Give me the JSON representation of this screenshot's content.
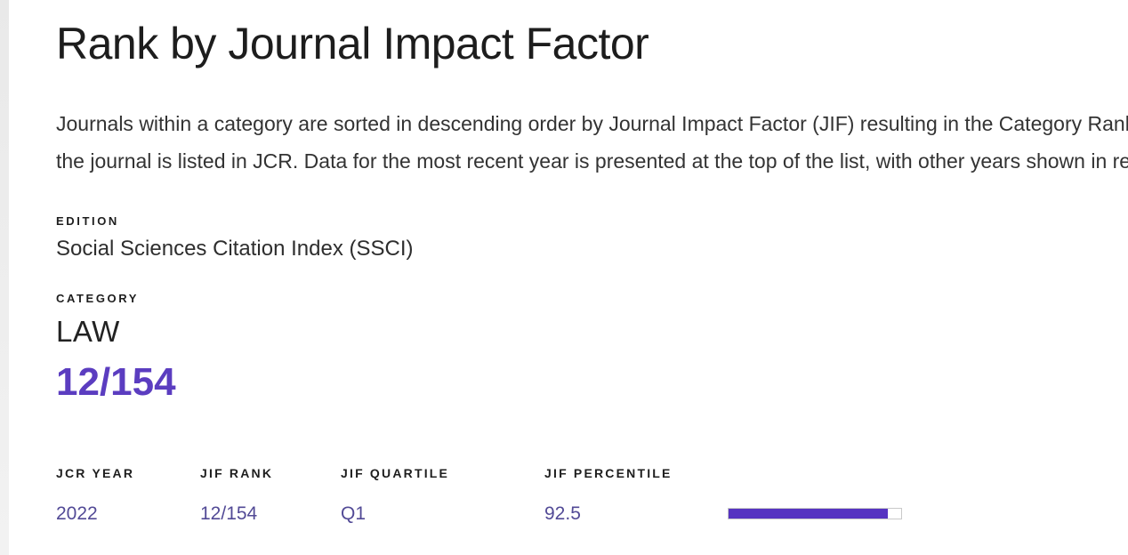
{
  "page": {
    "title": "Rank by Journal Impact Factor",
    "description_lines": [
      "Journals within a category are sorted in descending order by Journal Impact Factor (JIF) resulting in the Category Ranking below. A separate rank is shown for each category in which",
      "the journal is listed in JCR. Data for the most recent year is presented at the top of the list, with other years shown in reverse chronological order."
    ]
  },
  "details": {
    "edition_label": "EDITION",
    "edition_value": "Social Sciences Citation Index (SSCI)",
    "category_label": "CATEGORY",
    "category_value": "LAW",
    "rank_value": "12/154"
  },
  "table": {
    "headers": [
      "JCR YEAR",
      "JIF RANK",
      "JIF QUARTILE",
      "JIF PERCENTILE"
    ],
    "rows": [
      {
        "jcr_year": "2022",
        "jif_rank": "12/154",
        "jif_quartile": "Q1",
        "jif_percentile": "92.5"
      }
    ]
  },
  "colors": {
    "accent_purple": "#5b3dc0",
    "row_text_purple": "#524a96",
    "progress_fill": "#5634c1",
    "progress_border": "#c9c9c9"
  }
}
